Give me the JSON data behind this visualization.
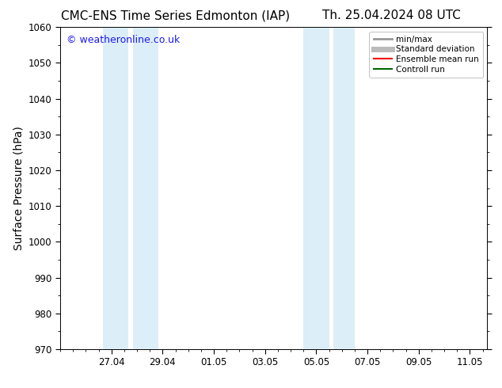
{
  "title_left": "CMC-ENS Time Series Edmonton (IAP)",
  "title_right": "Th. 25.04.2024 08 UTC",
  "ylabel": "Surface Pressure (hPa)",
  "ylim": [
    970,
    1060
  ],
  "yticks": [
    970,
    980,
    990,
    1000,
    1010,
    1020,
    1030,
    1040,
    1050,
    1060
  ],
  "xtick_labels": [
    "27.04",
    "29.04",
    "01.05",
    "03.05",
    "05.05",
    "07.05",
    "09.05",
    "11.05"
  ],
  "xtick_positions": [
    2.0,
    4.0,
    6.0,
    8.0,
    10.0,
    12.0,
    14.0,
    16.0
  ],
  "xlim": [
    0.0,
    16.667
  ],
  "shaded_bands": [
    {
      "x_start": 1.667,
      "x_end": 2.667
    },
    {
      "x_start": 2.833,
      "x_end": 3.833
    },
    {
      "x_start": 9.5,
      "x_end": 10.5
    },
    {
      "x_start": 10.667,
      "x_end": 11.5
    }
  ],
  "shaded_color": "#dceef8",
  "background_color": "#ffffff",
  "plot_bg_color": "#ffffff",
  "watermark": "© weatheronline.co.uk",
  "watermark_color": "#1a1aee",
  "legend_entries": [
    {
      "label": "min/max",
      "color": "#999999",
      "linewidth": 2.0
    },
    {
      "label": "Standard deviation",
      "color": "#bbbbbb",
      "linewidth": 5.0
    },
    {
      "label": "Ensemble mean run",
      "color": "#ff0000",
      "linewidth": 1.5
    },
    {
      "label": "Controll run",
      "color": "#006600",
      "linewidth": 1.5
    }
  ],
  "tick_fontsize": 8.5,
  "label_fontsize": 10,
  "title_fontsize": 11
}
